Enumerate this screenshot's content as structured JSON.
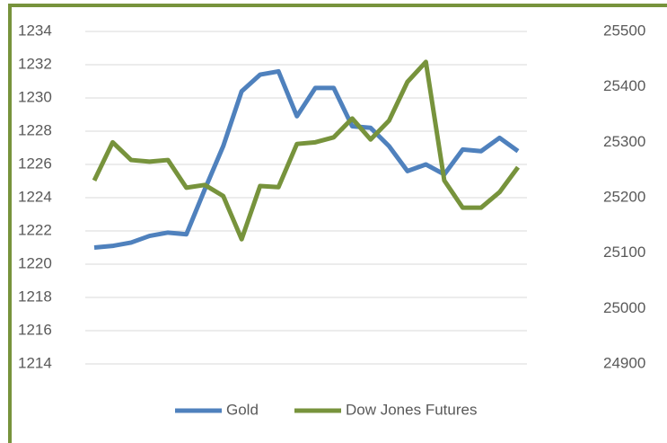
{
  "chart_data": {
    "type": "line",
    "categories": [
      null,
      null,
      null,
      null,
      null,
      null,
      null,
      null,
      null,
      null,
      null,
      null,
      null,
      null,
      null,
      null,
      null,
      null,
      null,
      null,
      null,
      null,
      null,
      null
    ],
    "series": [
      {
        "name": "Gold",
        "color": "#4f81bd",
        "values": [
          1221.0,
          1221.1,
          1221.3,
          1221.7,
          1221.9,
          1221.8,
          1224.5,
          1227.1,
          1230.4,
          1231.4,
          1231.6,
          1228.9,
          1230.6,
          1230.6,
          1228.3,
          1228.2,
          1227.1,
          1225.6,
          1226.0,
          1225.4,
          1226.9,
          1226.8,
          1227.6,
          1226.8
        ]
      },
      {
        "name": "Dow Jones Futures",
        "color": "#77933c",
        "axis": "y2",
        "values": [
          25231,
          25300,
          25268,
          25265,
          25268,
          25218,
          25223,
          25203,
          25125,
          25221,
          25219,
          25297,
          25300,
          25309,
          25343,
          25305,
          25339,
          25409,
          25445,
          25231,
          25182,
          25182,
          25210,
          25255
        ]
      }
    ],
    "ylim": [
      1214,
      1234
    ],
    "yticks": [
      1214,
      1216,
      1218,
      1220,
      1222,
      1224,
      1226,
      1228,
      1230,
      1232,
      1234
    ],
    "y2lim": [
      24900,
      25500
    ],
    "y2ticks": [
      24900,
      25000,
      25100,
      25200,
      25300,
      25400,
      25500
    ],
    "grid": true,
    "legend": "bottom"
  }
}
